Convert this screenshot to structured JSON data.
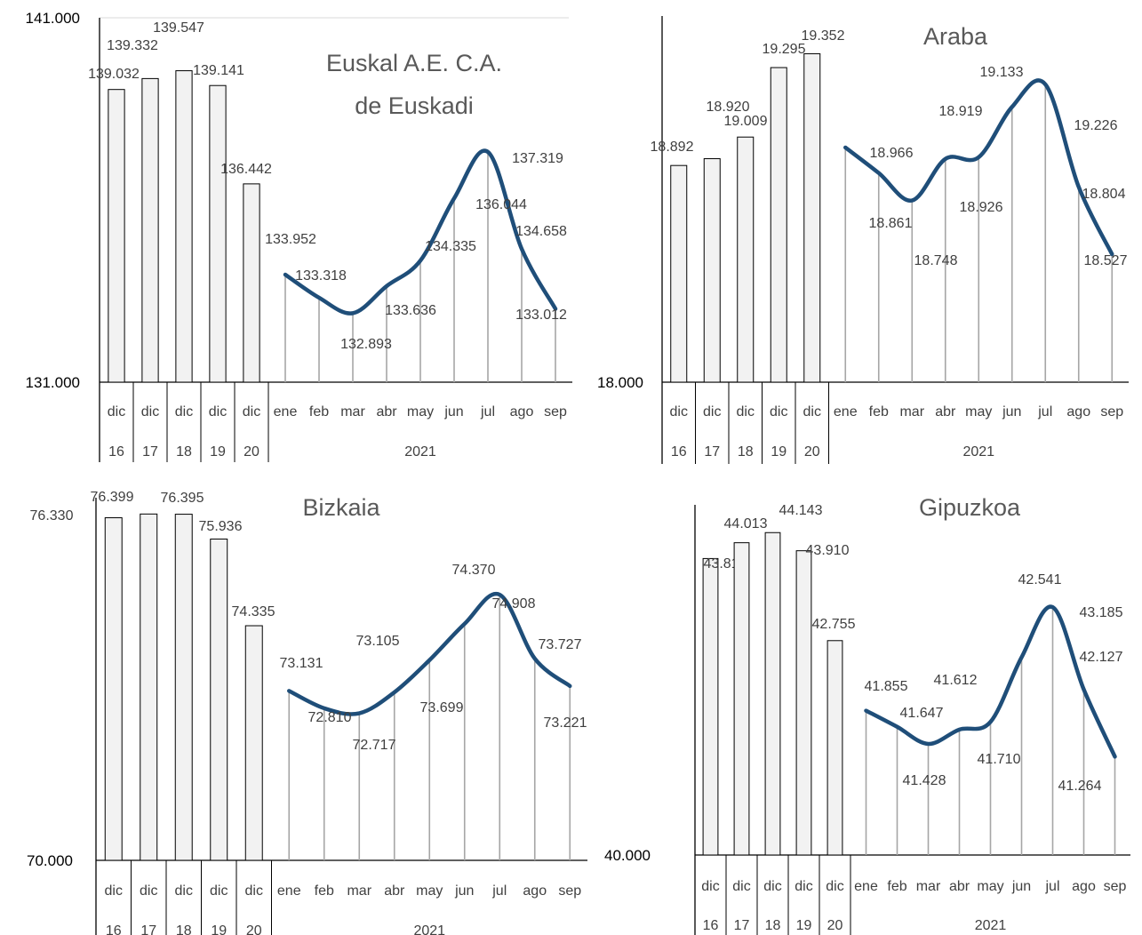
{
  "colors": {
    "bar_fill": "#f2f2f2",
    "bar_stroke": "#000000",
    "line": "#1f4e79",
    "drop": "#a6a6a6",
    "leader": "#a6a6a6"
  },
  "chart_data": [
    {
      "type": "bar+line",
      "title_lines": [
        "Euskal A.E. C.A.",
        "de Euskadi"
      ],
      "ytick_labels": [
        "141.000",
        "131.000"
      ],
      "ylim": [
        131000,
        141000
      ],
      "grid": false,
      "bars": {
        "categories": [
          [
            "dic",
            "16"
          ],
          [
            "dic",
            "17"
          ],
          [
            "dic",
            "18"
          ],
          [
            "dic",
            "19"
          ],
          [
            "dic",
            "20"
          ]
        ],
        "values": [
          139032,
          139332,
          139547,
          139141,
          136442
        ],
        "labels": [
          "139.032",
          "139.332",
          "139.547",
          "139.141",
          "136.442"
        ]
      },
      "line": {
        "group_label": "2021",
        "categories": [
          "ene",
          "feb",
          "mar",
          "abr",
          "may",
          "jun",
          "jul",
          "ago",
          "sep"
        ],
        "values": [
          133952,
          133318,
          132893,
          133636,
          134335,
          136044,
          137319,
          134658,
          133012
        ],
        "labels": [
          "133.952",
          "133.318",
          "132.893",
          "133.636",
          "134.335",
          "136.044",
          "137.319",
          "134.658",
          "133.012"
        ]
      }
    },
    {
      "type": "bar+line",
      "title_lines": [
        "Araba"
      ],
      "ytick_labels": [
        "18.000"
      ],
      "ylim": [
        18000,
        19500
      ],
      "grid": false,
      "bars": {
        "categories": [
          [
            "dic",
            "16"
          ],
          [
            "dic",
            "17"
          ],
          [
            "dic",
            "18"
          ],
          [
            "dic",
            "19"
          ],
          [
            "dic",
            "20"
          ]
        ],
        "values": [
          18892,
          18920,
          19009,
          19295,
          19352
        ],
        "labels": [
          "18.892",
          "18.920",
          "19.009",
          "19.295",
          "19.352"
        ]
      },
      "line": {
        "group_label": "2021",
        "categories": [
          "ene",
          "feb",
          "mar",
          "abr",
          "may",
          "jun",
          "jul",
          "ago",
          "sep"
        ],
        "values": [
          18966,
          18861,
          18748,
          18919,
          18926,
          19133,
          19226,
          18804,
          18527
        ],
        "labels": [
          "18.966",
          "18.861",
          "18.748",
          "18.919",
          "18.926",
          "19.133",
          "19.226",
          "18.804",
          "18.527"
        ]
      }
    },
    {
      "type": "bar+line",
      "title_lines": [
        "Bizkaia"
      ],
      "ytick_labels": [
        "70.000"
      ],
      "ylim": [
        70000,
        76700
      ],
      "grid": false,
      "bars": {
        "categories": [
          [
            "dic",
            "16"
          ],
          [
            "dic",
            "17"
          ],
          [
            "dic",
            "18"
          ],
          [
            "dic",
            "19"
          ],
          [
            "dic",
            "20"
          ]
        ],
        "values": [
          76330,
          76399,
          76395,
          75936,
          74335
        ],
        "labels": [
          "76.330",
          "76.399",
          "76.395",
          "75.936",
          "74.335"
        ]
      },
      "line": {
        "group_label": "2021",
        "categories": [
          "ene",
          "feb",
          "mar",
          "abr",
          "may",
          "jun",
          "jul",
          "ago",
          "sep"
        ],
        "values": [
          73131,
          72810,
          72717,
          73105,
          73699,
          74370,
          74908,
          73727,
          73221
        ],
        "labels": [
          "73.131",
          "72.810",
          "72.717",
          "73.105",
          "73.699",
          "74.370",
          "74.908",
          "73.727",
          "73.221"
        ]
      }
    },
    {
      "type": "bar+line",
      "title_lines": [
        "Gipuzkoa"
      ],
      "ytick_labels": [
        "40.000"
      ],
      "ylim": [
        40000,
        44500
      ],
      "grid": false,
      "bars": {
        "categories": [
          [
            "dic",
            "16"
          ],
          [
            "dic",
            "17"
          ],
          [
            "dic",
            "18"
          ],
          [
            "dic",
            "19"
          ],
          [
            "dic",
            "20"
          ]
        ],
        "values": [
          43810,
          44013,
          44143,
          43910,
          42755
        ],
        "labels": [
          "43.810",
          "44.013",
          "44.143",
          "43.910",
          "42.755"
        ]
      },
      "line": {
        "group_label": "2021",
        "categories": [
          "ene",
          "feb",
          "mar",
          "abr",
          "may",
          "jun",
          "jul",
          "ago",
          "sep"
        ],
        "values": [
          41855,
          41647,
          41428,
          41612,
          41710,
          42541,
          43185,
          42127,
          41264
        ],
        "labels": [
          "41.855",
          "41.647",
          "41.428",
          "41.612",
          "41.710",
          "42.541",
          "43.185",
          "42.127",
          "41.264"
        ]
      }
    }
  ]
}
